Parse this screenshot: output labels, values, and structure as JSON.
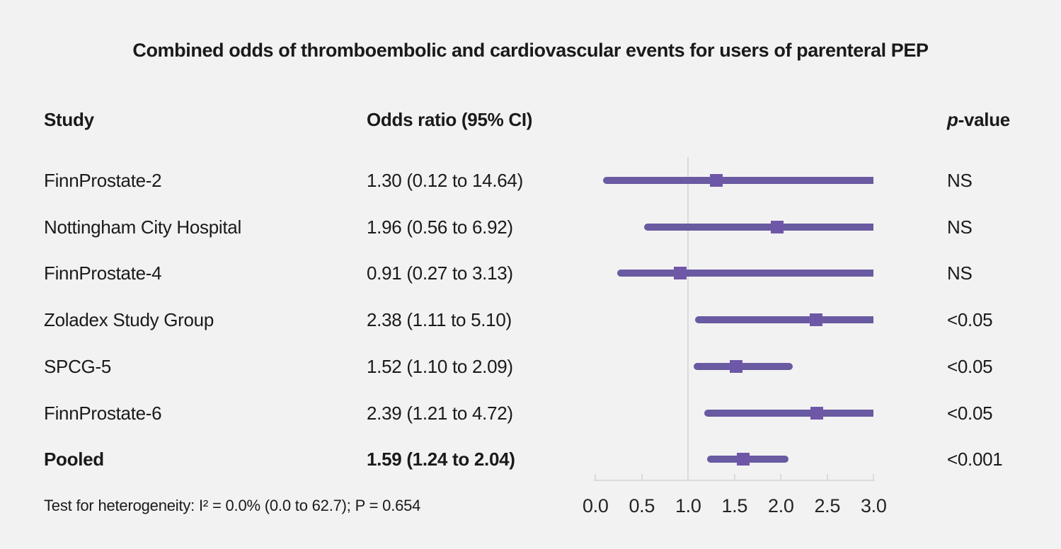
{
  "chart_data": {
    "type": "forest",
    "title": "Combined odds of thromboembolic and cardiovascular events for users of parenteral PEP",
    "columns": {
      "study": "Study",
      "or_ci": "Odds ratio (95% CI)",
      "p_italic": "p",
      "p_rest": "-value"
    },
    "axis": {
      "min": 0.0,
      "max": 3.0,
      "tick_labels": [
        "0.0",
        "0.5",
        "1.0",
        "1.5",
        "2.0",
        "2.5",
        "3.0"
      ],
      "reference_line": 1.0
    },
    "rows": [
      {
        "study": "FinnProstate-2",
        "or": 1.3,
        "lo": 0.12,
        "hi": 14.64,
        "or_ci": "1.30 (0.12 to 14.64)",
        "p": "NS",
        "bold": false
      },
      {
        "study": "Nottingham City Hospital",
        "or": 1.96,
        "lo": 0.56,
        "hi": 6.92,
        "or_ci": "1.96 (0.56 to 6.92)",
        "p": "NS",
        "bold": false
      },
      {
        "study": "FinnProstate-4",
        "or": 0.91,
        "lo": 0.27,
        "hi": 3.13,
        "or_ci": "0.91 (0.27 to 3.13)",
        "p": "NS",
        "bold": false
      },
      {
        "study": "Zoladex Study Group",
        "or": 2.38,
        "lo": 1.11,
        "hi": 5.1,
        "or_ci": "2.38 (1.11 to 5.10)",
        "p": "<0.05",
        "bold": false
      },
      {
        "study": "SPCG-5",
        "or": 1.52,
        "lo": 1.1,
        "hi": 2.09,
        "or_ci": "1.52 (1.10 to 2.09)",
        "p": "<0.05",
        "bold": false
      },
      {
        "study": "FinnProstate-6",
        "or": 2.39,
        "lo": 1.21,
        "hi": 4.72,
        "or_ci": "2.39 (1.21 to 4.72)",
        "p": "<0.05",
        "bold": false
      },
      {
        "study": "Pooled",
        "or": 1.59,
        "lo": 1.24,
        "hi": 2.04,
        "or_ci": "1.59 (1.24 to 2.04)",
        "p": "<0.001",
        "bold": true
      }
    ],
    "footnote": "Test for heterogeneity: I² = 0.0% (0.0 to 62.7); P = 0.654",
    "colors": {
      "background": "#f2f2f2",
      "ci_line": "#695aa1",
      "marker": "#6f57a8",
      "axis": "#d8dbe0",
      "text": "#1a1a1a"
    }
  }
}
